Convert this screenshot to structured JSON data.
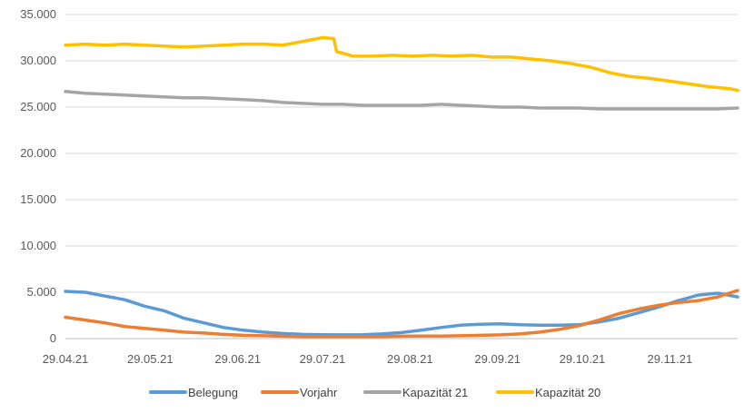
{
  "chart_data": {
    "type": "line",
    "title": "",
    "xlabel": "",
    "ylabel": "",
    "ylim": [
      0,
      35000
    ],
    "y_ticks": [
      0,
      5000,
      10000,
      15000,
      20000,
      25000,
      30000,
      35000
    ],
    "y_tick_labels": [
      "0",
      "5.000",
      "10.000",
      "15.000",
      "20.000",
      "25.000",
      "30.000",
      "35.000"
    ],
    "x_tick_labels": [
      "29.04.21",
      "29.05.21",
      "29.06.21",
      "29.07.21",
      "29.08.21",
      "29.09.21",
      "29.10.21",
      "29.11.21"
    ],
    "x_range": [
      "29.04.21",
      "23.12.21"
    ],
    "grid": "horizontal",
    "legend_position": "bottom",
    "series": [
      {
        "name": "Belegung",
        "color": "#5B9BD5",
        "points": [
          [
            "29.04.21",
            5100
          ],
          [
            "06.05.21",
            5000
          ],
          [
            "13.05.21",
            4600
          ],
          [
            "20.05.21",
            4200
          ],
          [
            "27.05.21",
            3500
          ],
          [
            "03.06.21",
            3000
          ],
          [
            "10.06.21",
            2200
          ],
          [
            "17.06.21",
            1700
          ],
          [
            "24.06.21",
            1200
          ],
          [
            "01.07.21",
            900
          ],
          [
            "08.07.21",
            700
          ],
          [
            "15.07.21",
            550
          ],
          [
            "22.07.21",
            450
          ],
          [
            "29.07.21",
            420
          ],
          [
            "05.08.21",
            400
          ],
          [
            "12.08.21",
            420
          ],
          [
            "19.08.21",
            500
          ],
          [
            "26.08.21",
            650
          ],
          [
            "02.09.21",
            900
          ],
          [
            "09.09.21",
            1200
          ],
          [
            "16.09.21",
            1450
          ],
          [
            "23.09.21",
            1550
          ],
          [
            "30.09.21",
            1600
          ],
          [
            "07.10.21",
            1500
          ],
          [
            "14.10.21",
            1450
          ],
          [
            "21.10.21",
            1450
          ],
          [
            "28.10.21",
            1500
          ],
          [
            "04.11.21",
            1800
          ],
          [
            "11.11.21",
            2200
          ],
          [
            "18.11.21",
            2800
          ],
          [
            "25.11.21",
            3400
          ],
          [
            "02.12.21",
            4100
          ],
          [
            "09.12.21",
            4700
          ],
          [
            "16.12.21",
            4900
          ],
          [
            "23.12.21",
            4500
          ]
        ]
      },
      {
        "name": "Vorjahr",
        "color": "#ED7D31",
        "points": [
          [
            "29.04.21",
            2300
          ],
          [
            "06.05.21",
            2000
          ],
          [
            "13.05.21",
            1700
          ],
          [
            "20.05.21",
            1300
          ],
          [
            "27.05.21",
            1100
          ],
          [
            "03.06.21",
            900
          ],
          [
            "10.06.21",
            700
          ],
          [
            "17.06.21",
            600
          ],
          [
            "24.06.21",
            450
          ],
          [
            "01.07.21",
            350
          ],
          [
            "08.07.21",
            300
          ],
          [
            "15.07.21",
            250
          ],
          [
            "22.07.21",
            230
          ],
          [
            "29.07.21",
            220
          ],
          [
            "05.08.21",
            220
          ],
          [
            "12.08.21",
            230
          ],
          [
            "19.08.21",
            230
          ],
          [
            "26.08.21",
            250
          ],
          [
            "02.09.21",
            260
          ],
          [
            "09.09.21",
            270
          ],
          [
            "16.09.21",
            300
          ],
          [
            "23.09.21",
            350
          ],
          [
            "30.09.21",
            400
          ],
          [
            "07.10.21",
            500
          ],
          [
            "14.10.21",
            700
          ],
          [
            "21.10.21",
            1000
          ],
          [
            "28.10.21",
            1400
          ],
          [
            "04.11.21",
            2000
          ],
          [
            "11.11.21",
            2700
          ],
          [
            "18.11.21",
            3200
          ],
          [
            "25.11.21",
            3600
          ],
          [
            "02.12.21",
            3900
          ],
          [
            "09.12.21",
            4100
          ],
          [
            "16.12.21",
            4500
          ],
          [
            "23.12.21",
            5200
          ]
        ]
      },
      {
        "name": "Kapazität 21",
        "color": "#A5A5A5",
        "points": [
          [
            "29.04.21",
            26700
          ],
          [
            "06.05.21",
            26500
          ],
          [
            "13.05.21",
            26400
          ],
          [
            "20.05.21",
            26300
          ],
          [
            "27.05.21",
            26200
          ],
          [
            "03.06.21",
            26100
          ],
          [
            "10.06.21",
            26000
          ],
          [
            "17.06.21",
            26000
          ],
          [
            "24.06.21",
            25900
          ],
          [
            "01.07.21",
            25800
          ],
          [
            "08.07.21",
            25700
          ],
          [
            "15.07.21",
            25500
          ],
          [
            "22.07.21",
            25400
          ],
          [
            "29.07.21",
            25300
          ],
          [
            "05.08.21",
            25300
          ],
          [
            "12.08.21",
            25200
          ],
          [
            "19.08.21",
            25200
          ],
          [
            "26.08.21",
            25200
          ],
          [
            "02.09.21",
            25200
          ],
          [
            "09.09.21",
            25300
          ],
          [
            "16.09.21",
            25200
          ],
          [
            "23.09.21",
            25100
          ],
          [
            "30.09.21",
            25000
          ],
          [
            "07.10.21",
            25000
          ],
          [
            "14.10.21",
            24900
          ],
          [
            "21.10.21",
            24900
          ],
          [
            "28.10.21",
            24900
          ],
          [
            "04.11.21",
            24800
          ],
          [
            "11.11.21",
            24800
          ],
          [
            "18.11.21",
            24800
          ],
          [
            "25.11.21",
            24800
          ],
          [
            "02.12.21",
            24800
          ],
          [
            "09.12.21",
            24800
          ],
          [
            "16.12.21",
            24800
          ],
          [
            "23.12.21",
            24900
          ]
        ]
      },
      {
        "name": "Kapazität 20",
        "color": "#FFC000",
        "points": [
          [
            "29.04.21",
            31700
          ],
          [
            "06.05.21",
            31800
          ],
          [
            "13.05.21",
            31700
          ],
          [
            "20.05.21",
            31800
          ],
          [
            "27.05.21",
            31700
          ],
          [
            "03.06.21",
            31600
          ],
          [
            "10.06.21",
            31500
          ],
          [
            "17.06.21",
            31600
          ],
          [
            "24.06.21",
            31700
          ],
          [
            "01.07.21",
            31800
          ],
          [
            "08.07.21",
            31800
          ],
          [
            "15.07.21",
            31700
          ],
          [
            "22.07.21",
            32100
          ],
          [
            "29.07.21",
            32500
          ],
          [
            "02.08.21",
            32400
          ],
          [
            "03.08.21",
            31000
          ],
          [
            "09.08.21",
            30500
          ],
          [
            "16.08.21",
            30500
          ],
          [
            "23.08.21",
            30600
          ],
          [
            "30.08.21",
            30500
          ],
          [
            "06.09.21",
            30600
          ],
          [
            "13.09.21",
            30500
          ],
          [
            "20.09.21",
            30600
          ],
          [
            "27.09.21",
            30400
          ],
          [
            "04.10.21",
            30400
          ],
          [
            "11.10.21",
            30200
          ],
          [
            "18.10.21",
            30000
          ],
          [
            "25.10.21",
            29700
          ],
          [
            "01.11.21",
            29300
          ],
          [
            "08.11.21",
            28700
          ],
          [
            "15.11.21",
            28300
          ],
          [
            "22.11.21",
            28100
          ],
          [
            "29.11.21",
            27800
          ],
          [
            "06.12.21",
            27500
          ],
          [
            "13.12.21",
            27200
          ],
          [
            "20.12.21",
            27000
          ],
          [
            "23.12.21",
            26800
          ]
        ]
      }
    ]
  }
}
